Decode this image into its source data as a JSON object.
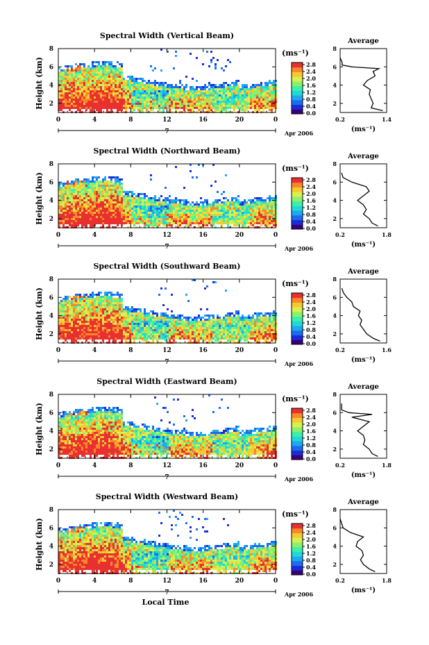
{
  "chart_data": [
    {
      "type": "heatmap",
      "title": "Spectral Width (Vertical Beam)",
      "ylabel": "Height (km)",
      "units": "(ms⁻¹)",
      "xticks": [
        "0",
        "4",
        "8",
        "12",
        "16",
        "20",
        "0"
      ],
      "yticks": [
        "2",
        "4",
        "6",
        "8"
      ],
      "date_axis": {
        "day": "7",
        "month_label": "Apr 2006"
      },
      "xlim": [
        0,
        24
      ],
      "ylim": [
        1,
        8
      ],
      "colorbar": {
        "ticks": [
          "2.8",
          "2.4",
          "2.0",
          "1.6",
          "1.2",
          "0.8",
          "0.4",
          "0.0"
        ],
        "range": [
          0,
          2.8
        ]
      },
      "average_profile": {
        "title": "Average",
        "xlabel": "(ms⁻¹)",
        "xticks": [
          "0.2",
          "1.4"
        ],
        "yticks": [
          "2",
          "4",
          "6",
          "8"
        ],
        "xlim": [
          0.2,
          1.4
        ],
        "ylim": [
          1,
          8
        ],
        "heights": [
          1.2,
          1.5,
          2.0,
          2.5,
          3.0,
          3.5,
          4.0,
          4.5,
          5.0,
          5.5,
          5.8,
          6.0,
          6.2,
          6.5,
          7.0
        ],
        "values": [
          1.3,
          1.0,
          1.05,
          1.0,
          0.95,
          0.98,
          0.8,
          0.9,
          1.1,
          1.05,
          1.2,
          0.5,
          0.25,
          0.25,
          0.2
        ]
      }
    },
    {
      "type": "heatmap",
      "title": "Spectral Width (Northward Beam)",
      "ylabel": "Height (km)",
      "units": "(ms⁻¹)",
      "xticks": [
        "0",
        "4",
        "8",
        "12",
        "16",
        "20",
        "0"
      ],
      "yticks": [
        "2",
        "4",
        "6",
        "8"
      ],
      "date_axis": {
        "day": "7",
        "month_label": "Apr 2006"
      },
      "xlim": [
        0,
        24
      ],
      "ylim": [
        1,
        8
      ],
      "colorbar": {
        "ticks": [
          "2.8",
          "2.4",
          "2.0",
          "1.6",
          "1.2",
          "0.8",
          "0.4",
          "0.0"
        ],
        "range": [
          0,
          2.8
        ]
      },
      "average_profile": {
        "title": "Average",
        "xlabel": "(ms⁻¹)",
        "xticks": [
          "0.2",
          "1.8"
        ],
        "yticks": [
          "2",
          "4",
          "6",
          "8"
        ],
        "xlim": [
          0.2,
          1.8
        ],
        "ylim": [
          1,
          8
        ],
        "heights": [
          1.2,
          1.5,
          2.0,
          2.5,
          3.0,
          3.5,
          4.0,
          4.5,
          5.0,
          5.5,
          6.0,
          6.5,
          7.0
        ],
        "values": [
          1.5,
          1.3,
          1.2,
          1.0,
          1.1,
          1.0,
          0.8,
          1.0,
          1.2,
          1.1,
          0.6,
          0.3,
          0.25
        ]
      }
    },
    {
      "type": "heatmap",
      "title": "Spectral Width (Southward Beam)",
      "ylabel": "Height (km)",
      "units": "(ms⁻¹)",
      "xticks": [
        "0",
        "4",
        "8",
        "12",
        "16",
        "20",
        "0"
      ],
      "yticks": [
        "2",
        "4",
        "6",
        "8"
      ],
      "date_axis": {
        "day": "7",
        "month_label": "Apr 2006"
      },
      "xlim": [
        0,
        24
      ],
      "ylim": [
        1,
        8
      ],
      "colorbar": {
        "ticks": [
          "2.8",
          "2.4",
          "2.0",
          "1.6",
          "1.2",
          "0.8",
          "0.4",
          "0.0"
        ],
        "range": [
          0,
          2.8
        ]
      },
      "average_profile": {
        "title": "Average",
        "xlabel": "(ms⁻¹)",
        "xticks": [
          "0.2",
          "1.6"
        ],
        "yticks": [
          "2",
          "4",
          "6",
          "8"
        ],
        "xlim": [
          0.2,
          1.6
        ],
        "ylim": [
          1,
          8
        ],
        "heights": [
          1.2,
          1.5,
          2.0,
          2.5,
          3.0,
          3.5,
          4.0,
          4.5,
          5.0,
          5.5,
          6.0,
          6.5,
          7.0
        ],
        "values": [
          1.4,
          1.2,
          1.0,
          0.9,
          0.8,
          0.85,
          0.75,
          0.8,
          0.6,
          0.55,
          0.4,
          0.3,
          0.25
        ]
      }
    },
    {
      "type": "heatmap",
      "title": "Spectral Width (Eastward Beam)",
      "ylabel": "Height (km)",
      "units": "(ms⁻¹)",
      "xticks": [
        "0",
        "4",
        "8",
        "12",
        "16",
        "20",
        "0"
      ],
      "yticks": [
        "2",
        "4",
        "6",
        "8"
      ],
      "date_axis": {
        "day": "7",
        "month_label": "Apr 2006"
      },
      "xlim": [
        0,
        24
      ],
      "ylim": [
        1,
        8
      ],
      "colorbar": {
        "ticks": [
          "2.8",
          "2.4",
          "2.0",
          "1.6",
          "1.2",
          "0.8",
          "0.4",
          "0.0"
        ],
        "range": [
          0,
          2.8
        ]
      },
      "average_profile": {
        "title": "Average",
        "xlabel": "(ms⁻¹)",
        "xticks": [
          "0.2",
          "1.8"
        ],
        "yticks": [
          "2",
          "4",
          "6",
          "8"
        ],
        "xlim": [
          0.2,
          1.8
        ],
        "ylim": [
          1,
          8
        ],
        "heights": [
          1.2,
          1.5,
          2.0,
          2.5,
          3.0,
          3.5,
          4.0,
          4.5,
          5.0,
          5.5,
          5.8,
          6.0,
          6.3,
          7.0
        ],
        "values": [
          1.5,
          1.3,
          1.2,
          1.0,
          1.05,
          1.0,
          0.8,
          1.0,
          1.2,
          0.6,
          1.3,
          0.5,
          0.25,
          0.25
        ]
      }
    },
    {
      "type": "heatmap",
      "title": "Spectral Width (Westward Beam)",
      "ylabel": "Height (km)",
      "units": "(ms⁻¹)",
      "xticks": [
        "0",
        "4",
        "8",
        "12",
        "16",
        "20",
        "0"
      ],
      "yticks": [
        "2",
        "4",
        "6",
        "8"
      ],
      "date_axis": {
        "day": "7",
        "month_label": "Apr 2006",
        "xlabel": "Local Time"
      },
      "xlim": [
        0,
        24
      ],
      "ylim": [
        1,
        8
      ],
      "colorbar": {
        "ticks": [
          "2.8",
          "2.4",
          "2.0",
          "1.6",
          "1.2",
          "0.8",
          "0.4",
          "0.0"
        ],
        "range": [
          0,
          2.8
        ]
      },
      "average_profile": {
        "title": "Average",
        "xlabel": "(ms⁻¹)",
        "xticks": [
          "0.2",
          "1.8"
        ],
        "yticks": [
          "2",
          "4",
          "6",
          "8"
        ],
        "xlim": [
          0.2,
          1.8
        ],
        "ylim": [
          1,
          8
        ],
        "heights": [
          1.2,
          1.5,
          2.0,
          2.5,
          3.0,
          3.5,
          4.0,
          4.5,
          5.0,
          5.5,
          6.0,
          6.5,
          7.0
        ],
        "values": [
          1.4,
          1.2,
          1.0,
          0.9,
          1.0,
          0.95,
          0.75,
          0.8,
          1.0,
          0.55,
          0.3,
          0.25,
          0.2
        ]
      }
    }
  ],
  "colormap": [
    "#3a007a",
    "#1a2cd8",
    "#1c6cf0",
    "#1ea8f0",
    "#20d8d8",
    "#3cf0a8",
    "#8cf06c",
    "#d8f050",
    "#f8c830",
    "#f88828",
    "#e83030"
  ]
}
